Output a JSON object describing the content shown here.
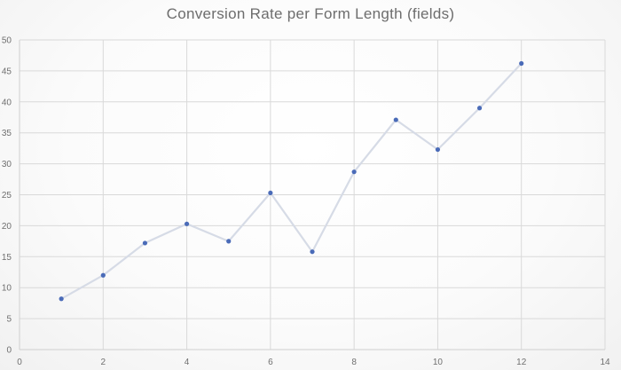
{
  "chart_data": {
    "type": "scatter",
    "title": "Conversion Rate per Form Length (fields)",
    "xlabel": "",
    "ylabel": "",
    "xlim": [
      0,
      14
    ],
    "ylim": [
      0,
      50
    ],
    "x_ticks": [
      0,
      2,
      4,
      6,
      8,
      10,
      12,
      14
    ],
    "y_ticks": [
      0,
      5,
      10,
      15,
      20,
      25,
      30,
      35,
      40,
      45,
      50
    ],
    "grid": true,
    "legend": "none",
    "series": [
      {
        "x": [
          1,
          2,
          3,
          4,
          5,
          6,
          7,
          8,
          9,
          10,
          11,
          12
        ],
        "y": [
          8.2,
          12,
          17.2,
          20.3,
          17.5,
          25.3,
          15.8,
          28.7,
          37.1,
          32.3,
          39,
          46.2
        ],
        "marker_color": "#4a6bb8",
        "line_color": "#d6dbe6"
      }
    ]
  }
}
